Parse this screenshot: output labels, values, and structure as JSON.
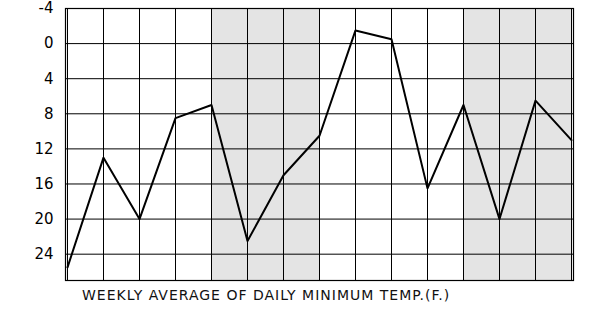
{
  "chart_data": {
    "type": "line",
    "title": "WEEKLY AVERAGE OF DAILY MINIMUM TEMP.(F.)",
    "categories": [
      null,
      null,
      null,
      null,
      null,
      null,
      null,
      null,
      null,
      null,
      null,
      null,
      null,
      null,
      null
    ],
    "values": [
      25.5,
      13,
      20,
      8.5,
      7,
      22.5,
      15,
      10.5,
      -1.5,
      -0.5,
      16.5,
      7,
      20,
      6.5,
      11
    ],
    "color": "#000000",
    "ylim": [
      -4,
      27
    ],
    "yticks": [
      -4,
      0,
      4,
      8,
      12,
      16,
      20,
      24
    ],
    "grid": true
  }
}
